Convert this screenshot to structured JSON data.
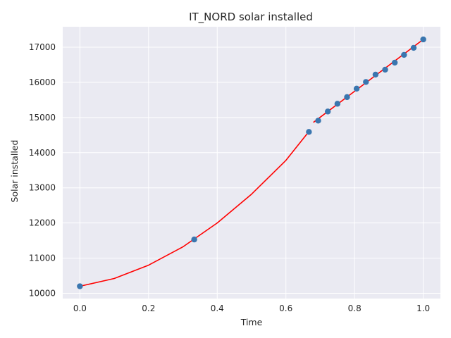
{
  "chart_data": {
    "type": "scatter",
    "title": "IT_NORD solar installed",
    "xlabel": "Time",
    "ylabel": "Solar installed",
    "xlim": [
      -0.05,
      1.05
    ],
    "ylim": [
      9850,
      17580
    ],
    "xticks": [
      0.0,
      0.2,
      0.4,
      0.6,
      0.8,
      1.0
    ],
    "xtick_labels": [
      "0.0",
      "0.2",
      "0.4",
      "0.6",
      "0.8",
      "1.0"
    ],
    "yticks": [
      10000,
      11000,
      12000,
      13000,
      14000,
      15000,
      16000,
      17000
    ],
    "ytick_labels": [
      "10000",
      "11000",
      "12000",
      "13000",
      "14000",
      "15000",
      "16000",
      "17000"
    ],
    "grid": true,
    "colors": {
      "background": "#eaeaf2",
      "grid": "#ffffff",
      "points": "#3a76af",
      "fit": "#ff0000"
    },
    "series": [
      {
        "kind": "points",
        "x": [
          0.0,
          0.333,
          0.667,
          0.694,
          0.722,
          0.75,
          0.778,
          0.806,
          0.833,
          0.861,
          0.889,
          0.917,
          0.944,
          0.972,
          1.0
        ],
        "y": [
          10200,
          11530,
          14590,
          14910,
          15170,
          15390,
          15580,
          15820,
          16010,
          16220,
          16360,
          16560,
          16780,
          16980,
          17220
        ]
      },
      {
        "kind": "curve",
        "x": [
          0.0,
          0.1,
          0.2,
          0.3,
          0.4,
          0.5,
          0.6,
          0.667
        ],
        "y": [
          10200,
          10420,
          10800,
          11320,
          12000,
          12820,
          13780,
          14600
        ]
      },
      {
        "kind": "curve",
        "x": [
          0.68,
          1.0
        ],
        "y": [
          14860,
          17220
        ]
      }
    ]
  }
}
